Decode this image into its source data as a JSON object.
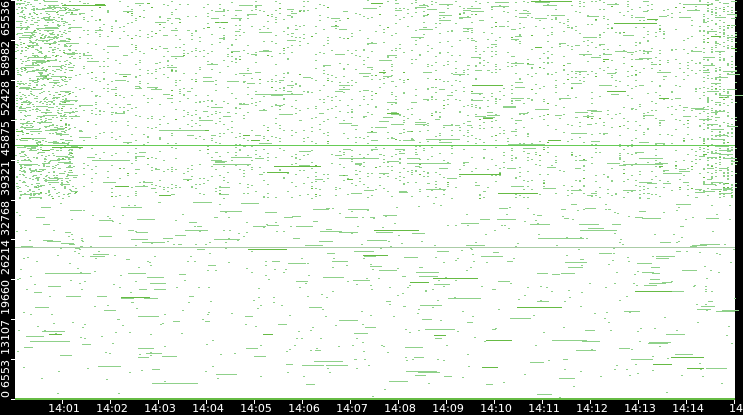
{
  "chart_data": {
    "type": "scatter",
    "title": "",
    "xlabel": "",
    "ylabel": "",
    "ylim": [
      0,
      65536
    ],
    "y_ticks": [
      "0",
      "6553",
      "13107",
      "19660",
      "26214",
      "32768",
      "39321",
      "45875",
      "52428",
      "58982",
      "65536"
    ],
    "x_ticks": [
      "14:01",
      "14:02",
      "14:03",
      "14:04",
      "14:05",
      "14:06",
      "14:07",
      "14:08",
      "14:09",
      "14:10",
      "14:11",
      "14:12",
      "14:13",
      "14:14",
      "14"
    ],
    "grid": false,
    "legend": "none",
    "horizontal_lines": [
      {
        "y": 41700,
        "color": "#66cc55"
      },
      {
        "y": 25000,
        "color": "#aacca6"
      }
    ],
    "density": "dense above 32768, sparse below; densest at start and end of time range",
    "colors": {
      "point": "#8fd18a",
      "point_dark": "#66bb44",
      "line": "#66cc55",
      "axis_bg": "#000000",
      "plot_bg": "#ffffff",
      "axis_text": "#ffffff"
    }
  }
}
